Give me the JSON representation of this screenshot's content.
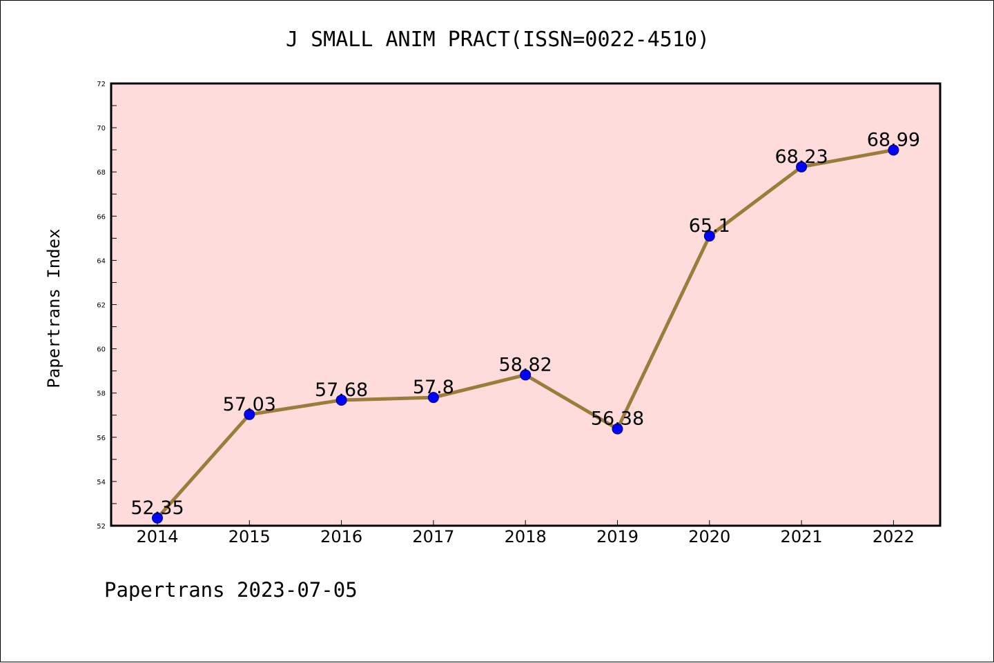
{
  "chart_data": {
    "type": "line",
    "title": "J SMALL ANIM PRACT(ISSN=0022-4510)",
    "xlabel": "",
    "ylabel": "Papertrans Index",
    "categories": [
      "2014",
      "2015",
      "2016",
      "2017",
      "2018",
      "2019",
      "2020",
      "2021",
      "2022"
    ],
    "values": [
      52.35,
      57.03,
      57.68,
      57.8,
      58.82,
      56.38,
      65.1,
      68.23,
      68.99
    ],
    "data_labels": [
      "52.35",
      "57.03",
      "57.68",
      "57.8",
      "58.82",
      "56.38",
      "65.1",
      "68.23",
      "68.99"
    ],
    "ylim": [
      52,
      72
    ],
    "yticks": [
      "52",
      "54",
      "56",
      "58",
      "60",
      "62",
      "64",
      "66",
      "68",
      "70",
      "72"
    ],
    "grid": false,
    "legend": "none",
    "colors": {
      "plot_background": "#ffdcdc",
      "line": "#9a7d3a",
      "marker_fill": "#0000ff",
      "marker_edge": "#000080",
      "axes": "#000000"
    },
    "footer": "Papertrans 2023-07-05"
  }
}
